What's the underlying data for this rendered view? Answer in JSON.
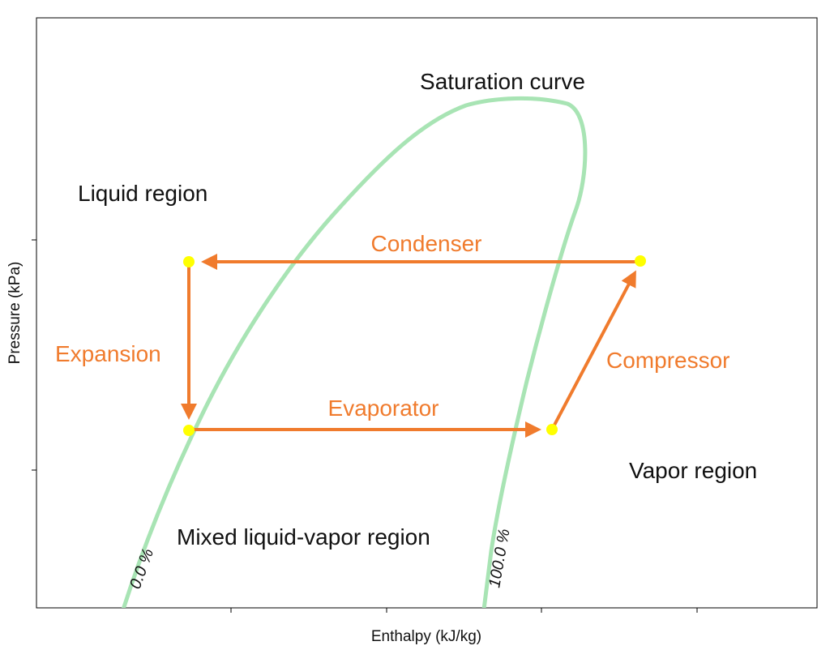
{
  "chart_data": {
    "type": "line",
    "title": "",
    "xlabel": "Enthalpy (kJ/kg)",
    "ylabel": "Pressure (kPa)",
    "tick_labels_shown": false,
    "grid": false,
    "colors": {
      "saturation": "#a8e4b4",
      "cycle": "#f07b2d",
      "state_point": "#ffff00",
      "process_label": "#f07b2d"
    },
    "saturation_curve": {
      "label": "Saturation curve",
      "quality_labels": [
        "0.0 %",
        "100.0 %"
      ]
    },
    "regions": [
      {
        "name": "Liquid region"
      },
      {
        "name": "Mixed liquid-vapor region"
      },
      {
        "name": "Vapor region"
      }
    ],
    "processes": [
      {
        "name": "Condenser"
      },
      {
        "name": "Expansion"
      },
      {
        "name": "Evaporator"
      },
      {
        "name": "Compressor"
      }
    ]
  }
}
